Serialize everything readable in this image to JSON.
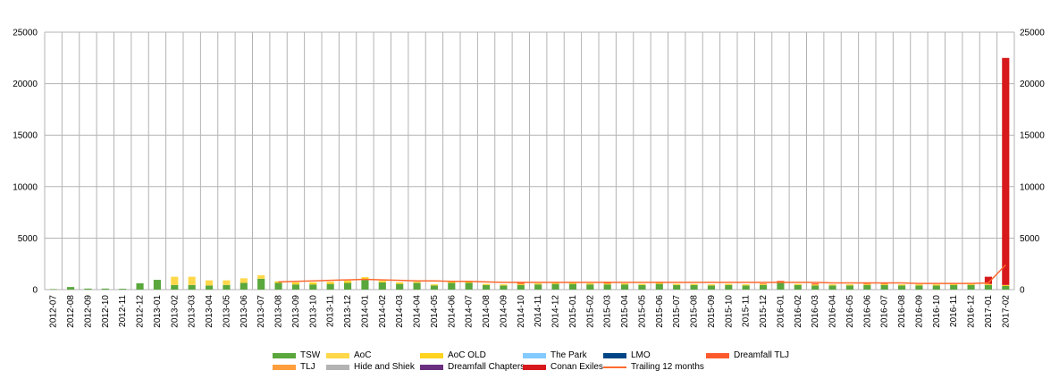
{
  "chart_data": {
    "type": "bar",
    "stacked": true,
    "categories": [
      "2012-07",
      "2012-08",
      "2012-09",
      "2012-10",
      "2012-11",
      "2012-12",
      "2013-01",
      "2013-02",
      "2013-03",
      "2013-04",
      "2013-05",
      "2013-06",
      "2013-07",
      "2013-08",
      "2013-09",
      "2013-10",
      "2013-11",
      "2013-12",
      "2014-01",
      "2014-02",
      "2014-03",
      "2014-04",
      "2014-05",
      "2014-06",
      "2014-07",
      "2014-08",
      "2014-09",
      "2014-10",
      "2014-11",
      "2014-12",
      "2015-01",
      "2015-02",
      "2015-03",
      "2015-04",
      "2015-05",
      "2015-06",
      "2015-07",
      "2015-08",
      "2015-09",
      "2015-10",
      "2015-11",
      "2015-12",
      "2016-01",
      "2016-02",
      "2016-03",
      "2016-04",
      "2016-05",
      "2016-06",
      "2016-07",
      "2016-08",
      "2016-09",
      "2016-10",
      "2016-11",
      "2016-12",
      "2017-01",
      "2017-02"
    ],
    "ylim": [
      0,
      25000
    ],
    "yticks": [
      0,
      5000,
      10000,
      15000,
      20000,
      25000
    ],
    "grid": true,
    "legend_position": "bottom",
    "series": [
      {
        "name": "TSW",
        "color": "#5aa73e",
        "values": [
          50,
          250,
          100,
          100,
          80,
          620,
          950,
          450,
          450,
          400,
          450,
          650,
          1050,
          650,
          500,
          500,
          550,
          650,
          950,
          700,
          550,
          650,
          400,
          650,
          650,
          450,
          400,
          450,
          500,
          550,
          550,
          500,
          500,
          500,
          450,
          550,
          450,
          450,
          400,
          450,
          400,
          450,
          650,
          450,
          400,
          400,
          400,
          450,
          450,
          400,
          400,
          400,
          450,
          450,
          450,
          350
        ]
      },
      {
        "name": "AoC",
        "color": "#ffd84a",
        "values": [
          0,
          0,
          0,
          0,
          0,
          0,
          0,
          800,
          800,
          500,
          450,
          450,
          350,
          0,
          0,
          0,
          0,
          0,
          0,
          0,
          0,
          0,
          0,
          0,
          0,
          0,
          0,
          0,
          0,
          0,
          0,
          0,
          0,
          0,
          0,
          0,
          0,
          0,
          0,
          0,
          0,
          0,
          0,
          0,
          0,
          0,
          0,
          0,
          0,
          0,
          0,
          0,
          0,
          0,
          0,
          0
        ]
      },
      {
        "name": "AoC OLD",
        "color": "#ffd320",
        "values": [
          0,
          0,
          0,
          0,
          0,
          0,
          0,
          0,
          0,
          0,
          0,
          0,
          0,
          150,
          200,
          200,
          200,
          200,
          250,
          150,
          150,
          100,
          100,
          100,
          100,
          100,
          100,
          100,
          100,
          100,
          100,
          100,
          100,
          100,
          100,
          100,
          100,
          100,
          100,
          100,
          100,
          100,
          100,
          100,
          100,
          100,
          100,
          100,
          100,
          100,
          100,
          100,
          100,
          100,
          100,
          100
        ]
      },
      {
        "name": "The Park",
        "color": "#83caff",
        "values": [
          0,
          0,
          0,
          0,
          0,
          0,
          0,
          0,
          0,
          0,
          0,
          0,
          0,
          0,
          0,
          0,
          0,
          0,
          0,
          0,
          0,
          0,
          0,
          0,
          0,
          0,
          0,
          0,
          0,
          0,
          0,
          0,
          0,
          0,
          0,
          0,
          0,
          0,
          0,
          0,
          0,
          0,
          0,
          0,
          0,
          0,
          0,
          0,
          0,
          0,
          0,
          0,
          0,
          0,
          0,
          0
        ]
      },
      {
        "name": "LMO",
        "color": "#004586",
        "values": [
          0,
          0,
          0,
          0,
          0,
          0,
          0,
          0,
          0,
          0,
          0,
          0,
          0,
          0,
          0,
          0,
          0,
          0,
          0,
          0,
          0,
          0,
          0,
          0,
          0,
          0,
          0,
          0,
          0,
          0,
          0,
          0,
          0,
          0,
          0,
          0,
          0,
          0,
          0,
          0,
          0,
          0,
          0,
          0,
          0,
          0,
          0,
          0,
          0,
          0,
          0,
          0,
          0,
          0,
          0,
          0
        ]
      },
      {
        "name": "Dreamfall TLJ",
        "color": "#ff5a2e",
        "values": [
          0,
          0,
          0,
          0,
          0,
          0,
          0,
          0,
          0,
          0,
          0,
          0,
          0,
          0,
          0,
          0,
          0,
          0,
          0,
          0,
          0,
          0,
          0,
          0,
          0,
          0,
          0,
          100,
          0,
          0,
          0,
          0,
          150,
          0,
          0,
          100,
          0,
          0,
          0,
          0,
          0,
          50,
          100,
          0,
          100,
          0,
          0,
          150,
          100,
          0,
          0,
          0,
          100,
          0,
          0,
          0
        ]
      },
      {
        "name": "TLJ",
        "color": "#ff9e3d",
        "values": [
          0,
          0,
          0,
          0,
          0,
          0,
          0,
          0,
          0,
          0,
          0,
          0,
          0,
          0,
          0,
          0,
          0,
          0,
          0,
          0,
          0,
          0,
          0,
          0,
          0,
          0,
          0,
          0,
          0,
          0,
          0,
          0,
          0,
          0,
          0,
          0,
          0,
          0,
          0,
          0,
          0,
          0,
          0,
          0,
          0,
          0,
          0,
          0,
          0,
          0,
          0,
          0,
          0,
          0,
          0,
          0
        ]
      },
      {
        "name": "Hide and Shiek",
        "color": "#b3b3b3",
        "values": [
          0,
          0,
          0,
          0,
          0,
          0,
          0,
          0,
          0,
          0,
          0,
          0,
          0,
          0,
          0,
          0,
          0,
          0,
          0,
          0,
          0,
          0,
          0,
          0,
          0,
          0,
          0,
          0,
          0,
          0,
          0,
          0,
          0,
          0,
          0,
          0,
          0,
          0,
          0,
          0,
          0,
          0,
          0,
          0,
          0,
          0,
          0,
          0,
          0,
          0,
          0,
          0,
          0,
          0,
          0,
          0
        ]
      },
      {
        "name": "Dreamfall Chapters",
        "color": "#6a2f7e",
        "values": [
          0,
          0,
          0,
          0,
          0,
          0,
          0,
          0,
          0,
          0,
          0,
          0,
          0,
          0,
          0,
          0,
          0,
          0,
          0,
          0,
          0,
          0,
          0,
          0,
          0,
          0,
          0,
          0,
          0,
          0,
          0,
          0,
          0,
          0,
          0,
          0,
          0,
          0,
          0,
          0,
          0,
          0,
          0,
          0,
          0,
          0,
          0,
          0,
          0,
          0,
          0,
          0,
          0,
          0,
          0,
          0
        ]
      },
      {
        "name": "Conan Exiles",
        "color": "#d7191c",
        "values": [
          0,
          0,
          0,
          0,
          0,
          0,
          0,
          0,
          0,
          0,
          0,
          0,
          0,
          0,
          0,
          0,
          0,
          0,
          0,
          0,
          0,
          0,
          0,
          0,
          0,
          0,
          0,
          0,
          0,
          0,
          0,
          0,
          0,
          0,
          0,
          0,
          0,
          0,
          0,
          0,
          0,
          0,
          0,
          0,
          0,
          0,
          0,
          0,
          0,
          0,
          0,
          0,
          0,
          0,
          700,
          22050
        ]
      }
    ],
    "trailing_line": {
      "name": "Trailing 12 months",
      "color": "#ff6a2e",
      "values": [
        null,
        null,
        null,
        null,
        null,
        null,
        null,
        null,
        null,
        null,
        null,
        null,
        null,
        750,
        800,
        850,
        900,
        950,
        1000,
        950,
        900,
        850,
        850,
        800,
        800,
        750,
        700,
        700,
        700,
        700,
        700,
        700,
        700,
        700,
        700,
        700,
        700,
        700,
        700,
        700,
        700,
        700,
        700,
        700,
        700,
        650,
        650,
        650,
        650,
        650,
        600,
        600,
        600,
        600,
        650,
        2400
      ]
    }
  }
}
